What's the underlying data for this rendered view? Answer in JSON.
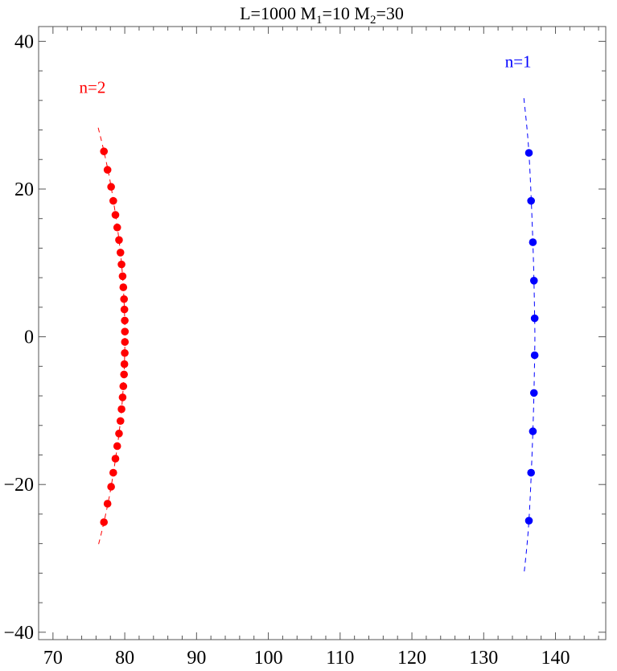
{
  "chart_data": {
    "type": "scatter",
    "title": {
      "segments": [
        {
          "text": "L=1000 M",
          "sub": false
        },
        {
          "text": "1",
          "sub": true
        },
        {
          "text": "=10 M",
          "sub": false
        },
        {
          "text": "2",
          "sub": true
        },
        {
          "text": "=30",
          "sub": false
        }
      ]
    },
    "xlabel": "",
    "ylabel": "",
    "xlim": [
      68,
      147
    ],
    "ylim": [
      -41,
      42
    ],
    "grid": false,
    "x_ticks": [
      {
        "value": 70,
        "label": "70"
      },
      {
        "value": 80,
        "label": "80"
      },
      {
        "value": 90,
        "label": "90"
      },
      {
        "value": 100,
        "label": "100"
      },
      {
        "value": 110,
        "label": "110"
      },
      {
        "value": 120,
        "label": "120"
      },
      {
        "value": 130,
        "label": "130"
      },
      {
        "value": 140,
        "label": "140"
      }
    ],
    "y_ticks": [
      {
        "value": 40,
        "label": "40"
      },
      {
        "value": 20,
        "label": "20"
      },
      {
        "value": 0,
        "label": "0"
      },
      {
        "value": -20,
        "label": "−20"
      },
      {
        "value": -40,
        "label": "−40"
      }
    ],
    "series": [
      {
        "name": "n=2",
        "color": "#ff0000",
        "label_pos": [
          75.5,
          33.0
        ],
        "points": [
          [
            77.1,
            25.1
          ],
          [
            77.6,
            22.6
          ],
          [
            78.1,
            20.3
          ],
          [
            78.4,
            18.4
          ],
          [
            78.7,
            16.5
          ],
          [
            78.95,
            14.8
          ],
          [
            79.2,
            13.1
          ],
          [
            79.4,
            11.4
          ],
          [
            79.55,
            9.8
          ],
          [
            79.7,
            8.2
          ],
          [
            79.8,
            6.7
          ],
          [
            79.9,
            5.1
          ],
          [
            79.95,
            3.7
          ],
          [
            80.0,
            2.2
          ],
          [
            80.02,
            0.7
          ],
          [
            80.02,
            -0.7
          ],
          [
            80.0,
            -2.2
          ],
          [
            79.95,
            -3.7
          ],
          [
            79.9,
            -5.1
          ],
          [
            79.8,
            -6.7
          ],
          [
            79.7,
            -8.2
          ],
          [
            79.55,
            -9.8
          ],
          [
            79.4,
            -11.4
          ],
          [
            79.2,
            -13.1
          ],
          [
            78.95,
            -14.8
          ],
          [
            78.7,
            -16.5
          ],
          [
            78.4,
            -18.4
          ],
          [
            78.1,
            -20.3
          ],
          [
            77.6,
            -22.6
          ],
          [
            77.1,
            -25.1
          ]
        ],
        "curve": [
          [
            76.3,
            28.3
          ],
          [
            77.1,
            25.1
          ],
          [
            78.1,
            20.3
          ],
          [
            79.2,
            13.1
          ],
          [
            79.8,
            6.7
          ],
          [
            80.02,
            0.0
          ],
          [
            79.8,
            -6.7
          ],
          [
            79.2,
            -13.1
          ],
          [
            78.1,
            -20.3
          ],
          [
            77.1,
            -25.1
          ],
          [
            76.3,
            -28.3
          ]
        ]
      },
      {
        "name": "n=1",
        "color": "#0000ff",
        "label_pos": [
          134.8,
          36.5
        ],
        "points": [
          [
            136.3,
            24.9
          ],
          [
            136.6,
            18.4
          ],
          [
            136.85,
            12.8
          ],
          [
            137.0,
            7.6
          ],
          [
            137.1,
            2.5
          ],
          [
            137.1,
            -2.5
          ],
          [
            137.0,
            -7.6
          ],
          [
            136.85,
            -12.8
          ],
          [
            136.6,
            -18.4
          ],
          [
            136.3,
            -24.9
          ]
        ],
        "curve": [
          [
            135.6,
            32.3
          ],
          [
            136.3,
            24.9
          ],
          [
            136.85,
            12.8
          ],
          [
            137.1,
            2.5
          ],
          [
            137.1,
            -2.5
          ],
          [
            136.85,
            -12.8
          ],
          [
            136.3,
            -24.9
          ],
          [
            135.6,
            -32.3
          ]
        ]
      }
    ]
  }
}
